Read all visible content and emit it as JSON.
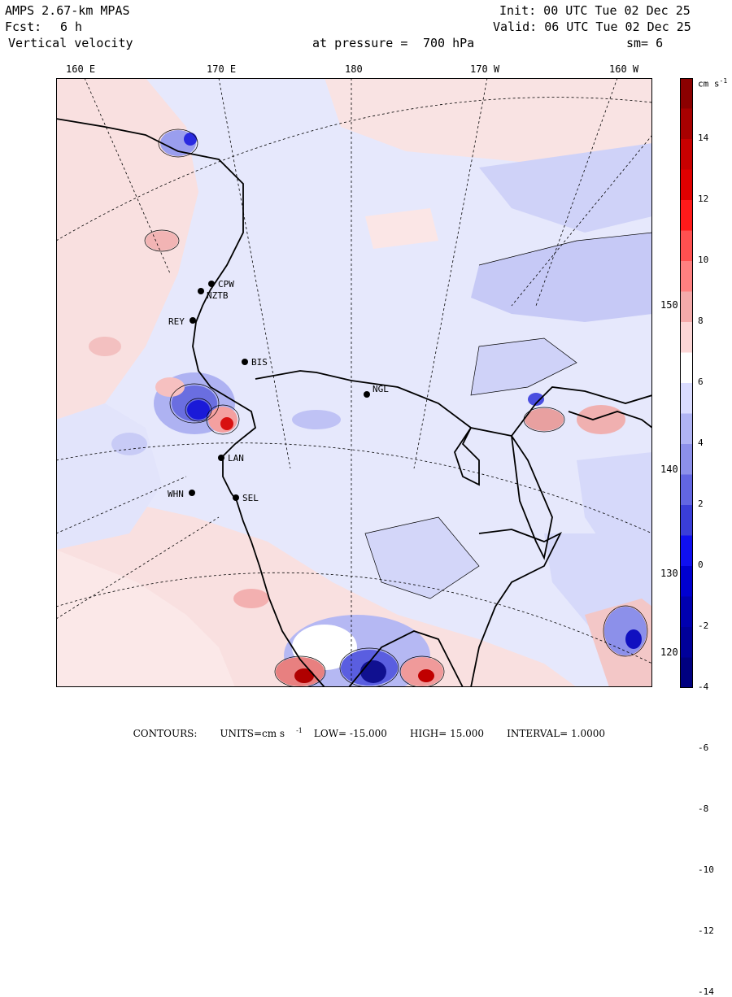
{
  "header": {
    "model": "AMPS 2.67-km MPAS",
    "forecast_label": "Fcst:",
    "forecast_value": "6 h",
    "field": "Vertical velocity",
    "init": "Init: 00 UTC Tue 02 Dec 25",
    "valid": "Valid: 06 UTC Tue 02 Dec 25",
    "pressure_label": "at pressure =",
    "pressure_value": "700 hPa",
    "smoothing": "sm= 6"
  },
  "longitude_labels": [
    "160 E",
    "170 E",
    "180",
    "170 W",
    "160 W"
  ],
  "latitude_labels": [
    "150 W",
    "140 W",
    "130 W",
    "120 W"
  ],
  "stations": [
    {
      "id": "CPW"
    },
    {
      "id": "NZTB"
    },
    {
      "id": "REY"
    },
    {
      "id": "BIS"
    },
    {
      "id": "NGL"
    },
    {
      "id": "LAN"
    },
    {
      "id": "WHN"
    },
    {
      "id": "SEL"
    }
  ],
  "colorbar": {
    "units": "cm s",
    "units_exp": "-1",
    "tick_labels": [
      "14",
      "12",
      "10",
      "8",
      "6",
      "4",
      "2",
      "0",
      "-2",
      "-4",
      "-6",
      "-8",
      "-10",
      "-12",
      "-14"
    ],
    "colors": [
      "#8b0000",
      "#a80000",
      "#c80000",
      "#e00000",
      "#ff1a1a",
      "#ff5050",
      "#ff8080",
      "#f4aaaa",
      "#fcd6d6",
      "#ffffff",
      "#dadcff",
      "#b0b4f4",
      "#8c90ea",
      "#6266e2",
      "#3a3ed8",
      "#1010f0",
      "#0000d0",
      "#0000b0",
      "#00009a",
      "#000080"
    ]
  },
  "footer": {
    "contours_label": "CONTOURS:",
    "units": "UNITS=cm s",
    "units_exp": "-1",
    "low": "LOW= -15.000",
    "high": "HIGH= 15.000",
    "interval": "INTERVAL= 1.0000"
  }
}
